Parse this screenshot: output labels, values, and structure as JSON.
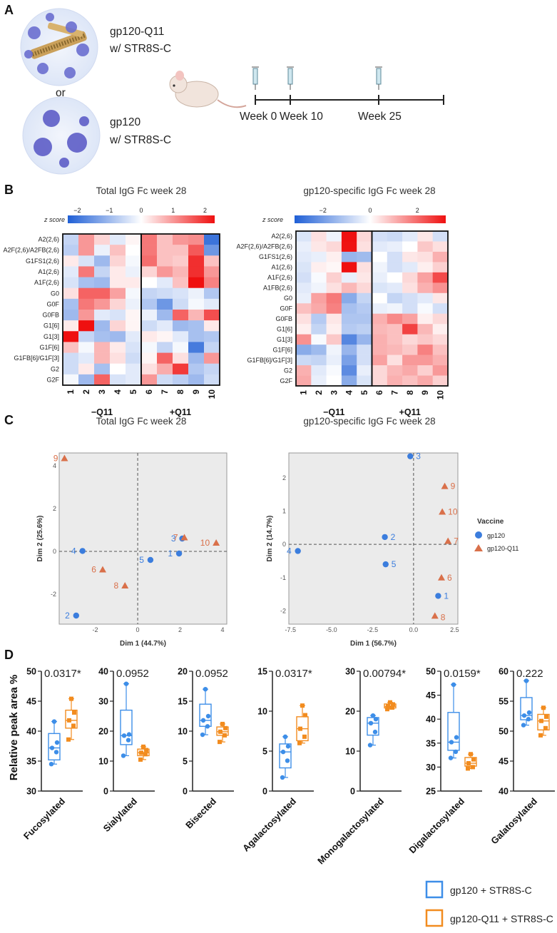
{
  "panels": {
    "a": "A",
    "b": "B",
    "c": "C",
    "d": "D"
  },
  "panel_a": {
    "option1": [
      "gp120-Q11",
      "w/ STR8S-C"
    ],
    "or_text": "or",
    "option2": [
      "gp120",
      "w/ STR8S-C"
    ],
    "timeline": [
      "Week 0",
      "Week 10",
      "Week 25"
    ]
  },
  "colors": {
    "gp120": "#3b7ddd",
    "gp120_q11": "#d9704a",
    "box_blue": "#3d8ee8",
    "box_orange": "#f28c1f",
    "heat_low": "#1f5fd6",
    "heat_high": "#ef1010"
  },
  "chart_data": [
    {
      "type": "heatmap",
      "title": "Total IgG Fc week 28",
      "zscore_label": "z score",
      "colorbar_ticks": [
        "−2",
        "−1",
        "0",
        "1",
        "2"
      ],
      "colorbar_range": [
        -2.3,
        2.3
      ],
      "rows": [
        "A2(2,6)",
        "A2F(2,6)/A2FB(2,6)",
        "G1FS1(2,6)",
        "A1(2,6)",
        "A1F(2,6)",
        "G0",
        "G0F",
        "G0FB",
        "G1[6]",
        "G1[3]",
        "G1F[6]",
        "G1FB[6]/G1F[3]",
        "G2",
        "G2F"
      ],
      "columns": [
        "1",
        "2",
        "3",
        "4",
        "5",
        "6",
        "7",
        "8",
        "9",
        "10"
      ],
      "groups": [
        "−Q11",
        "+Q11"
      ],
      "values": [
        [
          -0.6,
          1.0,
          0.4,
          -0.3,
          0.1,
          1.3,
          0.6,
          1.0,
          1.1,
          -2.0
        ],
        [
          -0.7,
          1.0,
          -0.2,
          0.6,
          0.0,
          1.3,
          0.6,
          0.6,
          1.6,
          -1.5
        ],
        [
          0.2,
          -0.4,
          -1.0,
          0.4,
          -0.1,
          1.4,
          0.6,
          0.5,
          2.0,
          0.6
        ],
        [
          -0.3,
          1.3,
          -0.6,
          0.2,
          -0.2,
          0.4,
          1.0,
          0.7,
          2.0,
          1.0
        ],
        [
          -0.4,
          -0.9,
          -1.0,
          0.2,
          0.2,
          0.0,
          -0.3,
          0.6,
          2.3,
          1.2
        ],
        [
          0.3,
          1.5,
          1.5,
          0.9,
          -0.1,
          -0.6,
          -0.5,
          -0.4,
          -0.2,
          -0.8
        ],
        [
          -0.9,
          1.3,
          1.0,
          0.4,
          -0.2,
          -0.8,
          -1.5,
          -0.5,
          -0.1,
          -0.3
        ],
        [
          -1.0,
          1.0,
          -0.3,
          -0.4,
          0.1,
          -0.2,
          -1.0,
          1.5,
          0.7,
          1.7
        ],
        [
          0.2,
          2.3,
          -1.0,
          0.4,
          0.1,
          -0.5,
          -0.3,
          -1.0,
          -0.9,
          0.2
        ],
        [
          2.3,
          -0.6,
          -0.9,
          -1.0,
          -0.3,
          0.2,
          0.1,
          -0.3,
          -0.9,
          -0.8
        ],
        [
          0.6,
          -0.1,
          0.7,
          0.2,
          -0.4,
          -0.1,
          -0.6,
          -0.1,
          -1.9,
          -0.6
        ],
        [
          -0.5,
          -0.3,
          0.7,
          0.3,
          -0.5,
          0.1,
          1.5,
          0.3,
          -1.0,
          1.0
        ],
        [
          -0.5,
          0.2,
          -0.9,
          0.0,
          -0.3,
          0.3,
          0.8,
          1.9,
          -0.8,
          -0.6
        ],
        [
          -0.1,
          -1.0,
          1.5,
          -0.4,
          -0.3,
          1.0,
          -0.5,
          -0.7,
          -1.0,
          -0.5
        ]
      ]
    },
    {
      "type": "heatmap",
      "title": "gp120-specific IgG Fc week 28",
      "zscore_label": "z score",
      "colorbar_ticks": [
        "−2",
        "0",
        "2"
      ],
      "colorbar_range": [
        -3.2,
        3.2
      ],
      "rows": [
        "A2(2,6)",
        "A2F(2,6)/A2FB(2,6)",
        "G1FS1(2,6)",
        "A1(2,6)",
        "A1F(2,6)",
        "A1FB(2,6)",
        "G0",
        "G0F",
        "G0FB",
        "G1[6]",
        "G1[3]",
        "G1F[6]",
        "G1FB[6]/G1F[3]",
        "G2",
        "G2F"
      ],
      "columns": [
        "1",
        "2",
        "3",
        "4",
        "5",
        "6",
        "7",
        "8",
        "9",
        "10"
      ],
      "groups": [
        "−Q11",
        "+Q11"
      ],
      "values": [
        [
          -0.5,
          0.4,
          -0.2,
          3.2,
          0.5,
          -0.6,
          -0.7,
          -0.4,
          0.3,
          -0.6
        ],
        [
          -0.3,
          0.3,
          0.5,
          3.0,
          0.4,
          -0.4,
          -0.3,
          0.0,
          0.7,
          0.4
        ],
        [
          -0.4,
          -0.3,
          0.2,
          -1.4,
          -1.3,
          0.0,
          -0.6,
          0.3,
          0.4,
          1.0
        ],
        [
          -0.5,
          0.2,
          0.1,
          3.2,
          0.4,
          -0.2,
          -0.6,
          -0.4,
          0.2,
          0.6
        ],
        [
          -0.6,
          -0.1,
          0.6,
          -0.3,
          0.3,
          -0.3,
          0.0,
          0.5,
          1.2,
          2.3
        ],
        [
          -0.4,
          -0.2,
          0.4,
          0.9,
          0.5,
          -0.5,
          -0.4,
          0.4,
          1.0,
          1.4
        ],
        [
          -0.3,
          1.2,
          1.7,
          -1.6,
          -0.8,
          0.0,
          -0.8,
          -0.6,
          -0.4,
          0.3
        ],
        [
          0.8,
          1.1,
          1.6,
          -1.2,
          -1.0,
          -0.3,
          -0.2,
          -0.6,
          -0.1,
          -0.6
        ],
        [
          0.4,
          -1.0,
          0.3,
          -1.1,
          -1.1,
          1.0,
          1.5,
          1.2,
          0.2,
          0.5
        ],
        [
          0.2,
          -0.8,
          0.2,
          -1.0,
          -0.9,
          0.9,
          0.8,
          2.4,
          0.9,
          0.2
        ],
        [
          1.4,
          -0.1,
          0.7,
          -2.3,
          -1.4,
          1.0,
          0.8,
          0.5,
          0.7,
          0.5
        ],
        [
          -1.6,
          -1.3,
          -0.2,
          -1.4,
          -0.6,
          1.0,
          0.9,
          0.7,
          1.6,
          0.8
        ],
        [
          -0.7,
          -0.8,
          -0.3,
          -1.8,
          -0.6,
          1.2,
          0.4,
          1.3,
          1.3,
          1.0
        ],
        [
          1.0,
          -0.4,
          -0.1,
          -2.2,
          -0.3,
          0.5,
          0.9,
          1.1,
          0.6,
          1.3
        ],
        [
          1.1,
          -0.3,
          0.0,
          -1.6,
          -0.5,
          0.5,
          1.0,
          0.8,
          1.1,
          0.6
        ]
      ]
    },
    {
      "type": "scatter",
      "title": "Total IgG Fc week 28",
      "xlabel": "Dim 1 (44.7%)",
      "ylabel": "Dim 2 (25.6%)",
      "xlim": [
        -3.7,
        4.2
      ],
      "ylim": [
        -3.4,
        4.6
      ],
      "xticks": [
        -2,
        0,
        2,
        4
      ],
      "yticks": [
        -2,
        0,
        2,
        4
      ],
      "series": [
        {
          "name": "gp120",
          "marker": "circle",
          "points": [
            {
              "label": "1",
              "x": 1.95,
              "y": -0.1
            },
            {
              "label": "2",
              "x": -2.9,
              "y": -3.0
            },
            {
              "label": "3",
              "x": 2.1,
              "y": 0.6
            },
            {
              "label": "4",
              "x": -2.6,
              "y": 0.02
            },
            {
              "label": "5",
              "x": 0.6,
              "y": -0.4
            }
          ]
        },
        {
          "name": "gp120-Q11",
          "marker": "triangle",
          "points": [
            {
              "label": "6",
              "x": -1.65,
              "y": -0.85
            },
            {
              "label": "7",
              "x": 2.2,
              "y": 0.65
            },
            {
              "label": "8",
              "x": -0.6,
              "y": -1.6
            },
            {
              "label": "9",
              "x": -3.45,
              "y": 4.35
            },
            {
              "label": "10",
              "x": 3.7,
              "y": 0.4
            }
          ]
        }
      ]
    },
    {
      "type": "scatter",
      "title": "gp120-specific IgG Fc week 28",
      "xlabel": "Dim 1 (56.7%)",
      "ylabel": "Dim 2 (14.7%)",
      "xlim": [
        -7.6,
        2.7
      ],
      "ylim": [
        -2.4,
        2.75
      ],
      "xticks": [
        "-7.5",
        "-5.0",
        "-2.5",
        "0.0",
        "2.5"
      ],
      "yticks": [
        -2,
        -1,
        0,
        1,
        2
      ],
      "legend_title": "Vaccine",
      "series": [
        {
          "name": "gp120",
          "marker": "circle",
          "points": [
            {
              "label": "1",
              "x": 1.5,
              "y": -1.55
            },
            {
              "label": "2",
              "x": -1.75,
              "y": 0.22
            },
            {
              "label": "3",
              "x": -0.2,
              "y": 2.65
            },
            {
              "label": "4",
              "x": -7.05,
              "y": -0.2
            },
            {
              "label": "5",
              "x": -1.7,
              "y": -0.6
            }
          ]
        },
        {
          "name": "gp120-Q11",
          "marker": "triangle",
          "points": [
            {
              "label": "6",
              "x": 1.7,
              "y": -1.0
            },
            {
              "label": "7",
              "x": 2.1,
              "y": 0.1
            },
            {
              "label": "8",
              "x": 1.3,
              "y": -2.15
            },
            {
              "label": "9",
              "x": 1.9,
              "y": 1.75
            },
            {
              "label": "10",
              "x": 1.75,
              "y": 0.98
            }
          ]
        }
      ]
    },
    {
      "type": "box",
      "ylabel": "Relative peak area %",
      "legend": [
        "gp120 + STR8S-C",
        "gp120-Q11 + STR8S-C"
      ],
      "panels": [
        {
          "category": "Fucosylated",
          "pvalue": "0.0317*",
          "ylim": [
            30,
            50
          ],
          "yticks": [
            30,
            35,
            40,
            45,
            50
          ],
          "gp120": {
            "min": 34.5,
            "q1": 35.2,
            "median": 37.2,
            "q3": 39.6,
            "max": 41.6,
            "points": [
              34.5,
              36.5,
              37.2,
              38.1,
              41.6
            ]
          },
          "gp120_q11": {
            "min": 38.6,
            "q1": 40.5,
            "median": 41.8,
            "q3": 43.5,
            "max": 45.4,
            "points": [
              38.6,
              40.9,
              41.8,
              43.1,
              45.4
            ]
          }
        },
        {
          "category": "Sialylated",
          "pvalue": "0.0952",
          "ylim": [
            0,
            40
          ],
          "yticks": [
            0,
            10,
            20,
            30,
            40
          ],
          "gp120": {
            "min": 11.8,
            "q1": 15.5,
            "median": 18.5,
            "q3": 27.0,
            "max": 35.8,
            "points": [
              11.8,
              17.0,
              18.5,
              18.9,
              35.8
            ]
          },
          "gp120_q11": {
            "min": 10.5,
            "q1": 11.8,
            "median": 12.8,
            "q3": 14.0,
            "max": 14.8,
            "points": [
              10.5,
              12.3,
              12.8,
              13.7,
              14.8
            ]
          }
        },
        {
          "category": "Bisected",
          "pvalue": "0.0952",
          "ylim": [
            0,
            20
          ],
          "yticks": [
            0,
            5,
            10,
            15,
            20
          ],
          "gp120": {
            "min": 9.4,
            "q1": 10.8,
            "median": 11.8,
            "q3": 14.5,
            "max": 17.0,
            "points": [
              9.4,
              10.8,
              11.8,
              12.5,
              17.0
            ]
          },
          "gp120_q11": {
            "min": 8.2,
            "q1": 9.3,
            "median": 9.9,
            "q3": 10.7,
            "max": 11.2,
            "points": [
              8.2,
              9.3,
              9.9,
              10.5,
              11.2
            ]
          }
        },
        {
          "category": "Agalactosylated",
          "pvalue": "0.0317*",
          "ylim": [
            0,
            15
          ],
          "yticks": [
            0,
            5,
            10,
            15
          ],
          "gp120": {
            "min": 1.7,
            "q1": 2.9,
            "median": 4.9,
            "q3": 5.9,
            "max": 6.8,
            "points": [
              1.7,
              3.8,
              4.9,
              5.6,
              6.8
            ]
          },
          "gp120_q11": {
            "min": 6.0,
            "q1": 6.3,
            "median": 7.8,
            "q3": 9.3,
            "max": 10.7,
            "points": [
              6.0,
              6.8,
              7.8,
              9.5,
              10.7
            ]
          }
        },
        {
          "category": "Monogalactosylated",
          "pvalue": "0.00794*",
          "ylim": [
            0,
            30
          ],
          "yticks": [
            0,
            10,
            20,
            30
          ],
          "gp120": {
            "min": 11.5,
            "q1": 14.0,
            "median": 17.0,
            "q3": 18.4,
            "max": 18.9,
            "points": [
              11.5,
              14.8,
              17.0,
              18.0,
              18.9
            ]
          },
          "gp120_q11": {
            "min": 20.5,
            "q1": 20.8,
            "median": 21.2,
            "q3": 21.8,
            "max": 22.2,
            "points": [
              20.5,
              20.9,
              21.2,
              21.7,
              22.2
            ]
          }
        },
        {
          "category": "Digalactosylated",
          "pvalue": "0.0159*",
          "ylim": [
            25,
            50
          ],
          "yticks": [
            25,
            30,
            35,
            40,
            45,
            50
          ],
          "gp120": {
            "min": 31.9,
            "q1": 33.5,
            "median": 35.2,
            "q3": 41.4,
            "max": 47.2,
            "points": [
              31.9,
              33.2,
              35.2,
              36.2,
              47.2
            ]
          },
          "gp120_q11": {
            "min": 29.7,
            "q1": 30.2,
            "median": 30.8,
            "q3": 32.0,
            "max": 32.7,
            "points": [
              29.7,
              30.0,
              30.8,
              31.6,
              32.7
            ]
          }
        },
        {
          "category": "Galatosylated",
          "pvalue": "0.222",
          "ylim": [
            40,
            60
          ],
          "yticks": [
            40,
            45,
            50,
            55,
            60
          ],
          "gp120": {
            "min": 51.0,
            "q1": 51.9,
            "median": 52.6,
            "q3": 55.6,
            "max": 58.4,
            "points": [
              51.0,
              52.0,
              52.6,
              53.1,
              58.4
            ]
          },
          "gp120_q11": {
            "min": 49.3,
            "q1": 50.2,
            "median": 51.7,
            "q3": 52.8,
            "max": 53.9,
            "points": [
              49.3,
              50.5,
              51.7,
              52.4,
              53.9
            ]
          }
        }
      ]
    }
  ]
}
